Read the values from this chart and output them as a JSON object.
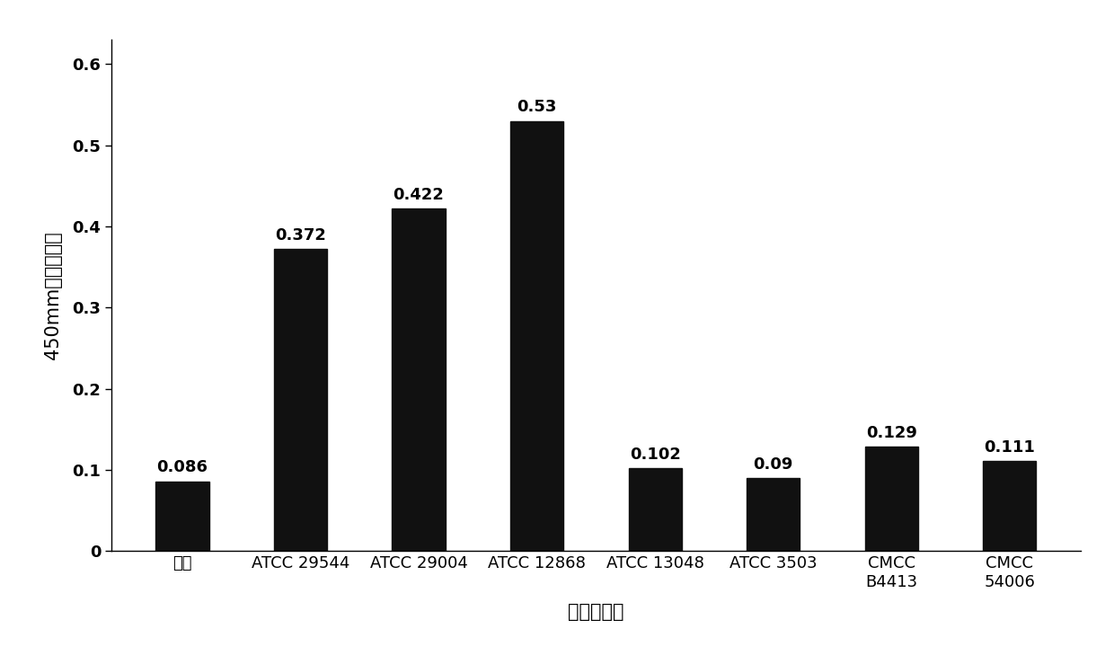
{
  "categories": [
    "空白",
    "ATCC 29544",
    "ATCC 29004",
    "ATCC 12868",
    "ATCC 13048",
    "ATCC 3503",
    "CMCC\nB4413",
    "CMCC\n54006"
  ],
  "values": [
    0.086,
    0.372,
    0.422,
    0.53,
    0.102,
    0.09,
    0.129,
    0.111
  ],
  "labels": [
    "0.086",
    "0.372",
    "0.422",
    "0.53",
    "0.102",
    "0.09",
    "0.129",
    "0.111"
  ],
  "bar_color": "#111111",
  "ylabel": "450mm处的吸光値",
  "xlabel": "测试菌株名",
  "ylim": [
    0,
    0.63
  ],
  "yticks": [
    0,
    0.1,
    0.2,
    0.3,
    0.4,
    0.5,
    0.6
  ],
  "ytick_labels": [
    "0",
    "0.1",
    "0.2",
    "0.3",
    "0.4",
    "0.5",
    "0.6"
  ],
  "background_color": "#ffffff",
  "bar_width": 0.45,
  "label_fontsize": 13,
  "tick_fontsize": 13,
  "axis_label_fontsize": 15
}
